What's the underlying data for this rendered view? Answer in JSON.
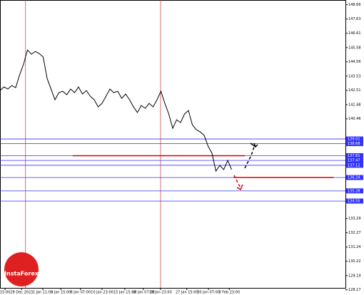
{
  "chart_data": {
    "type": "line",
    "watermark": "InstaForex",
    "x": [
      0,
      1,
      2,
      3,
      4,
      5,
      6,
      7,
      8,
      9,
      10,
      11,
      12,
      13,
      14,
      15,
      16,
      17,
      18,
      19,
      20,
      21,
      22,
      23,
      24,
      25,
      26,
      27,
      28,
      29,
      30,
      31,
      32,
      33,
      34,
      35,
      36,
      37,
      38,
      39,
      40,
      41,
      42,
      43,
      44,
      45,
      46,
      47,
      48,
      49,
      50,
      51,
      52,
      53,
      54,
      55,
      56,
      57,
      58,
      59
    ],
    "series": [
      {
        "color": "#000000",
        "values": [
          142.49,
          142.75,
          142.6,
          142.85,
          142.7,
          143.62,
          144.39,
          145.41,
          145.1,
          145.3,
          145.15,
          144.9,
          143.36,
          142.6,
          141.83,
          142.34,
          142.44,
          142.19,
          142.6,
          142.34,
          142.75,
          142.24,
          142.49,
          142.08,
          141.83,
          141.32,
          141.57,
          142.08,
          142.6,
          142.34,
          142.44,
          141.93,
          142.24,
          141.83,
          141.32,
          140.91,
          141.42,
          141.21,
          141.57,
          141.32,
          141.83,
          142.44,
          141.57,
          140.8,
          139.78,
          140.39,
          140.19,
          140.8,
          141.06,
          140.03,
          139.68,
          139.52,
          139.27,
          138.5,
          137.99,
          136.7,
          137.11,
          136.81,
          137.47,
          136.81
        ]
      }
    ],
    "xlim": [
      0,
      88
    ],
    "ylim": [
      128,
      149
    ],
    "yticks": [
      148.66,
      147.63,
      146.61,
      145.58,
      144.56,
      143.53,
      142.51,
      141.48,
      140.46,
      133.29,
      132.27,
      131.24,
      130.22,
      129.19,
      128.17
    ],
    "levels": {
      "color": "#3333ff",
      "values": [
        139.01,
        138.68,
        137.81,
        137.47,
        137.12,
        136.24,
        135.28,
        134.55
      ]
    },
    "segments": {
      "color": "#dd0000",
      "values": [
        137.81,
        136.24
      ],
      "x": [
        [
          18.5,
          62.4
        ],
        [
          59.5,
          85
        ]
      ]
    },
    "vlines": {
      "color": "#cc3333",
      "x": [
        6.5,
        40.9
      ]
    },
    "xticks": [
      {
        "value": 1.3,
        "label": "15:00"
      },
      {
        "value": 5.5,
        "label": "28 Dec 2023"
      },
      {
        "value": 10.9,
        "label": "2 Jan 11:00"
      },
      {
        "value": 15.5,
        "label": "3 Jan 15:00"
      },
      {
        "value": 20.5,
        "label": "8 Jan 07:00"
      },
      {
        "value": 26,
        "label": "10 Jan 23:00"
      },
      {
        "value": 31.8,
        "label": "15 Jan 15:00"
      },
      {
        "value": 36.5,
        "label": "18 Jan 07:00"
      },
      {
        "value": 40.9,
        "label": "19 Jan 23:00"
      },
      {
        "value": 47.6,
        "label": "27 Jan 15:00"
      },
      {
        "value": 53.1,
        "label": "30 Jan 07:00"
      },
      {
        "value": 58.4,
        "label": "3 Feb 23:00"
      }
    ]
  }
}
